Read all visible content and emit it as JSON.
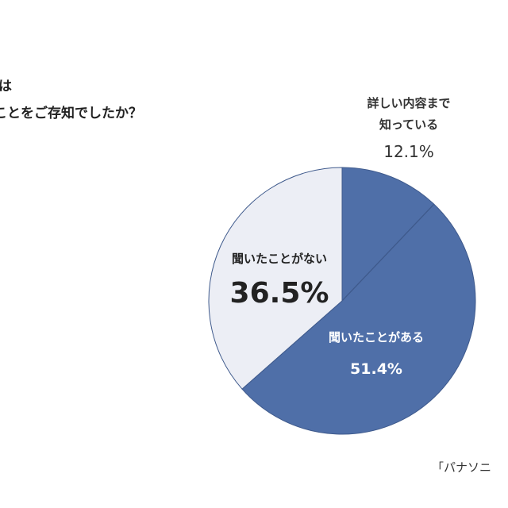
{
  "question": {
    "line1": "は",
    "line2": "ことをご存知でしたか？"
  },
  "source": "「パナソニ",
  "colors": {
    "heard": "#4f6fa8",
    "not_heard": "#eceef5",
    "edge": "#3f5a8c",
    "text_dark": "#222222",
    "text_light": "#ffffff"
  },
  "chart_data": {
    "type": "pie",
    "start_angle_deg": 0,
    "direction": "clockwise",
    "slices": [
      {
        "label": "詳しい内容まで知っている",
        "label_lines": [
          "詳しい内容まで",
          "知っている"
        ],
        "value": 12.1,
        "value_label": "12.1%",
        "color": "#4f6fa8"
      },
      {
        "label": "聞いたことがある",
        "label_lines": [
          "聞いたことがある"
        ],
        "value": 51.4,
        "value_label": "51.4%",
        "color": "#4f6fa8"
      },
      {
        "label": "聞いたことがない",
        "label_lines": [
          "聞いたことがない"
        ],
        "value": 36.5,
        "value_label": "36.5%",
        "color": "#eceef5"
      }
    ]
  }
}
